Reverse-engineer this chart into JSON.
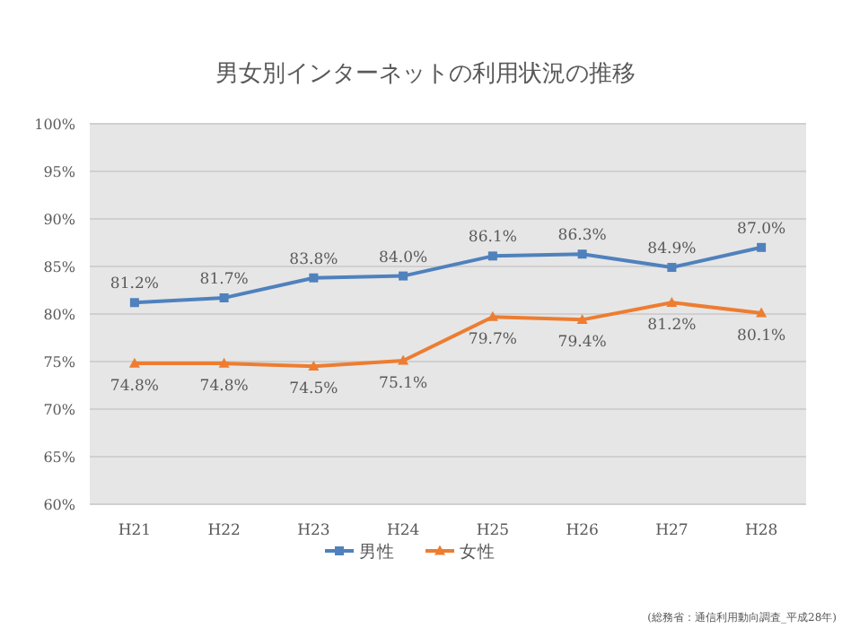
{
  "chart_data": {
    "type": "line",
    "title": "男女別インターネットの利用状況の推移",
    "categories": [
      "H21",
      "H22",
      "H23",
      "H24",
      "H25",
      "H26",
      "H27",
      "H28"
    ],
    "series": [
      {
        "name": "男性",
        "color": "#4f81bd",
        "marker": "square",
        "values": [
          81.2,
          81.7,
          83.8,
          84.0,
          86.1,
          86.3,
          84.9,
          87.0
        ],
        "value_labels": [
          "81.2%",
          "81.7%",
          "83.8%",
          "84.0%",
          "86.1%",
          "86.3%",
          "84.9%",
          "87.0%"
        ]
      },
      {
        "name": "女性",
        "color": "#ed7d31",
        "marker": "triangle",
        "values": [
          74.8,
          74.8,
          74.5,
          75.1,
          79.7,
          79.4,
          81.2,
          80.1
        ],
        "value_labels": [
          "74.8%",
          "74.8%",
          "74.5%",
          "75.1%",
          "79.7%",
          "79.4%",
          "81.2%",
          "80.1%"
        ]
      }
    ],
    "ylim": [
      60,
      100
    ],
    "yticks": [
      {
        "value": 60,
        "label": "60%"
      },
      {
        "value": 65,
        "label": "65%"
      },
      {
        "value": 70,
        "label": "70%"
      },
      {
        "value": 75,
        "label": "75%"
      },
      {
        "value": 80,
        "label": "80%"
      },
      {
        "value": 85,
        "label": "85%"
      },
      {
        "value": 90,
        "label": "90%"
      },
      {
        "value": 95,
        "label": "95%"
      },
      {
        "value": 100,
        "label": "100%"
      }
    ],
    "grid": "y",
    "legend": "bottom",
    "annotations": [
      "(総務省：通信利用動向調査_平成28年)"
    ]
  }
}
